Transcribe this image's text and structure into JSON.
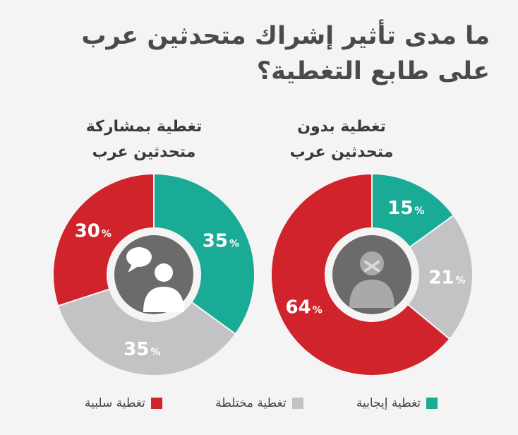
{
  "title": "ما مدى تأثير إشراك متحدثين عرب على طابع التغطية؟",
  "colors": {
    "positive": "#1aab97",
    "mixed": "#c3c3c6",
    "negative": "#d0232b",
    "center": "#6b6b6b"
  },
  "chart_data": [
    {
      "type": "pie",
      "title_lines": [
        "تغطية بدون",
        "متحدثين عرب"
      ],
      "icon": "muted-person-icon",
      "series": [
        {
          "name": "تغطية إيجابية",
          "value": 15,
          "label": "15%"
        },
        {
          "name": "تغطية مختلطة",
          "value": 21,
          "label": "21%"
        },
        {
          "name": "تغطية سلبية",
          "value": 64,
          "label": "64%"
        }
      ]
    },
    {
      "type": "pie",
      "title_lines": [
        "تغطية بمشاركة",
        "متحدثين عرب"
      ],
      "icon": "speaking-people-icon",
      "series": [
        {
          "name": "تغطية إيجابية",
          "value": 35,
          "label": "35%"
        },
        {
          "name": "تغطية مختلطة",
          "value": 35,
          "label": "35%"
        },
        {
          "name": "تغطية سلبية",
          "value": 30,
          "label": "30%"
        }
      ]
    }
  ],
  "legend": [
    {
      "label": "تغطية إيجابية",
      "color": "#1aab97"
    },
    {
      "label": "تغطية مختلطة",
      "color": "#c3c3c6"
    },
    {
      "label": "تغطية سلبية",
      "color": "#d0232b"
    }
  ]
}
